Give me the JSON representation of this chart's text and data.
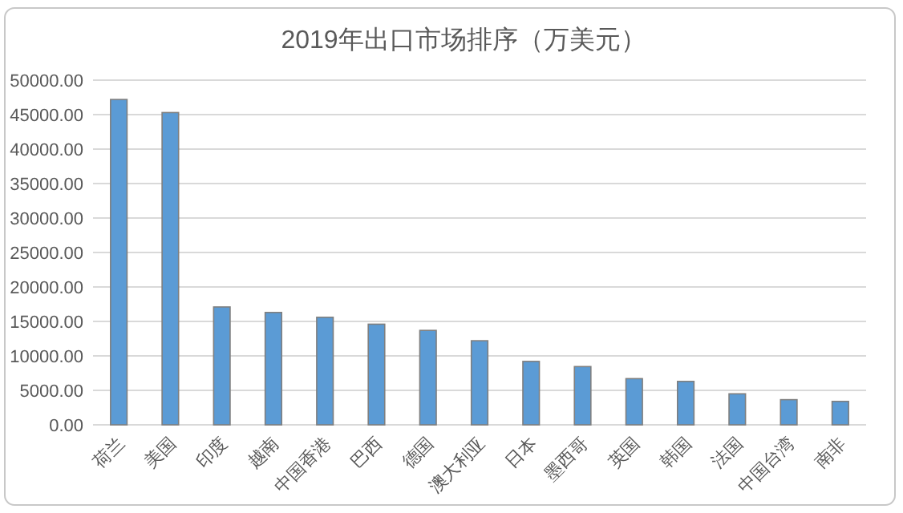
{
  "chart_data": {
    "type": "bar",
    "title": "2019年出口市场排序（万美元）",
    "categories": [
      "荷兰",
      "美国",
      "印度",
      "越南",
      "中国香港",
      "巴西",
      "德国",
      "澳大利亚",
      "日本",
      "墨西哥",
      "英国",
      "韩国",
      "法国",
      "中国台湾",
      "南非"
    ],
    "values": [
      47200,
      45300,
      17100,
      16300,
      15600,
      14600,
      13700,
      12200,
      9200,
      8450,
      6700,
      6300,
      4500,
      3650,
      3400
    ],
    "color": "#5b9bd5",
    "ylim": [
      0,
      50000
    ],
    "yticks": [
      {
        "value": 0,
        "label": "0.00"
      },
      {
        "value": 5000,
        "label": "5000.00"
      },
      {
        "value": 10000,
        "label": "10000.00"
      },
      {
        "value": 15000,
        "label": "15000.00"
      },
      {
        "value": 20000,
        "label": "20000.00"
      },
      {
        "value": 25000,
        "label": "25000.00"
      },
      {
        "value": 30000,
        "label": "30000.00"
      },
      {
        "value": 35000,
        "label": "35000.00"
      },
      {
        "value": 40000,
        "label": "40000.00"
      },
      {
        "value": 45000,
        "label": "45000.00"
      },
      {
        "value": 50000,
        "label": "50000.00"
      }
    ],
    "grid": "y"
  }
}
